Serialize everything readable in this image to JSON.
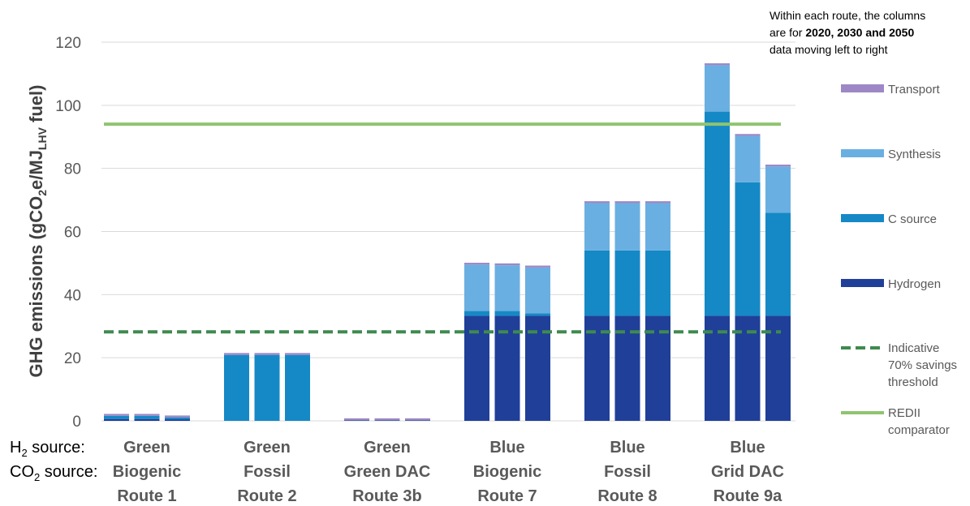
{
  "chart_data": {
    "type": "bar",
    "stacked": true,
    "ylabel_parts": [
      "GHG emissions (gCO",
      "2",
      "e/MJ",
      "LHV",
      " fuel)"
    ],
    "ylim": [
      0,
      120
    ],
    "yticks": [
      0,
      20,
      40,
      60,
      80,
      100,
      120
    ],
    "grid": true,
    "row_labels": [
      {
        "prefix": "H",
        "sub": "2",
        "suffix": " source:"
      },
      {
        "prefix": "CO",
        "sub": "2",
        "suffix": " source:"
      }
    ],
    "routes": [
      {
        "h2": "Green",
        "co2": "Biogenic",
        "route": "Route 1"
      },
      {
        "h2": "Green",
        "co2": "Fossil",
        "route": "Route 2"
      },
      {
        "h2": "Green",
        "co2": "Green DAC",
        "route": "Route 3b"
      },
      {
        "h2": "Blue",
        "co2": "Biogenic",
        "route": "Route 7"
      },
      {
        "h2": "Blue",
        "co2": "Fossil",
        "route": "Route 8"
      },
      {
        "h2": "Blue",
        "co2": "Grid DAC",
        "route": "Route 9a"
      }
    ],
    "series": [
      {
        "name": "Hydrogen",
        "color": "#1f3f99",
        "values": [
          [
            0.6,
            0.6,
            0.5
          ],
          [
            0,
            0,
            0
          ],
          [
            0.2,
            0.2,
            0.2
          ],
          [
            33.3,
            33.3,
            33.3
          ],
          [
            33.3,
            33.3,
            33.3
          ],
          [
            33.3,
            33.3,
            33.3
          ]
        ]
      },
      {
        "name": "C source",
        "color": "#1589c6",
        "values": [
          [
            1.0,
            1.0,
            0.6
          ],
          [
            20.9,
            20.9,
            20.9
          ],
          [
            0,
            0,
            0
          ],
          [
            1.5,
            1.5,
            0.8
          ],
          [
            20.7,
            20.7,
            20.7
          ],
          [
            64.7,
            42.3,
            32.6
          ]
        ]
      },
      {
        "name": "Synthesis",
        "color": "#6aafe1",
        "values": [
          [
            0,
            0,
            0
          ],
          [
            0,
            0,
            0
          ],
          [
            0,
            0,
            0
          ],
          [
            14.7,
            14.5,
            14.5
          ],
          [
            15.0,
            15.0,
            15.0
          ],
          [
            14.7,
            14.7,
            14.7
          ]
        ]
      },
      {
        "name": "Transport",
        "color": "#9d88c5",
        "values": [
          [
            0.6,
            0.6,
            0.6
          ],
          [
            0.6,
            0.6,
            0.6
          ],
          [
            0.6,
            0.6,
            0.6
          ],
          [
            0.6,
            0.6,
            0.6
          ],
          [
            0.6,
            0.6,
            0.6
          ],
          [
            0.6,
            0.6,
            0.6
          ]
        ]
      }
    ],
    "lines": [
      {
        "name": "Indicative 70% savings threshold",
        "legend_lines": [
          "Indicative",
          "70% savings",
          "threshold"
        ],
        "value": 28.2,
        "color": "#3f8a4f",
        "style": "dashed"
      },
      {
        "name": "REDII comparator",
        "legend_lines": [
          "REDII",
          "comparator"
        ],
        "value": 94,
        "color": "#8fc46f",
        "style": "solid"
      }
    ],
    "legend_order": [
      "Transport",
      "Synthesis",
      "C source",
      "Hydrogen"
    ],
    "legend_placement": "right",
    "note_parts": [
      {
        "text": "Within each route, the columns",
        "bold": false,
        "line": 0
      },
      {
        "text": "are for ",
        "bold": false,
        "line": 1
      },
      {
        "text": "2020, 2030 and 2050",
        "bold": true,
        "line": 1
      },
      {
        "text": "data moving left to right",
        "bold": false,
        "line": 2
      }
    ]
  }
}
